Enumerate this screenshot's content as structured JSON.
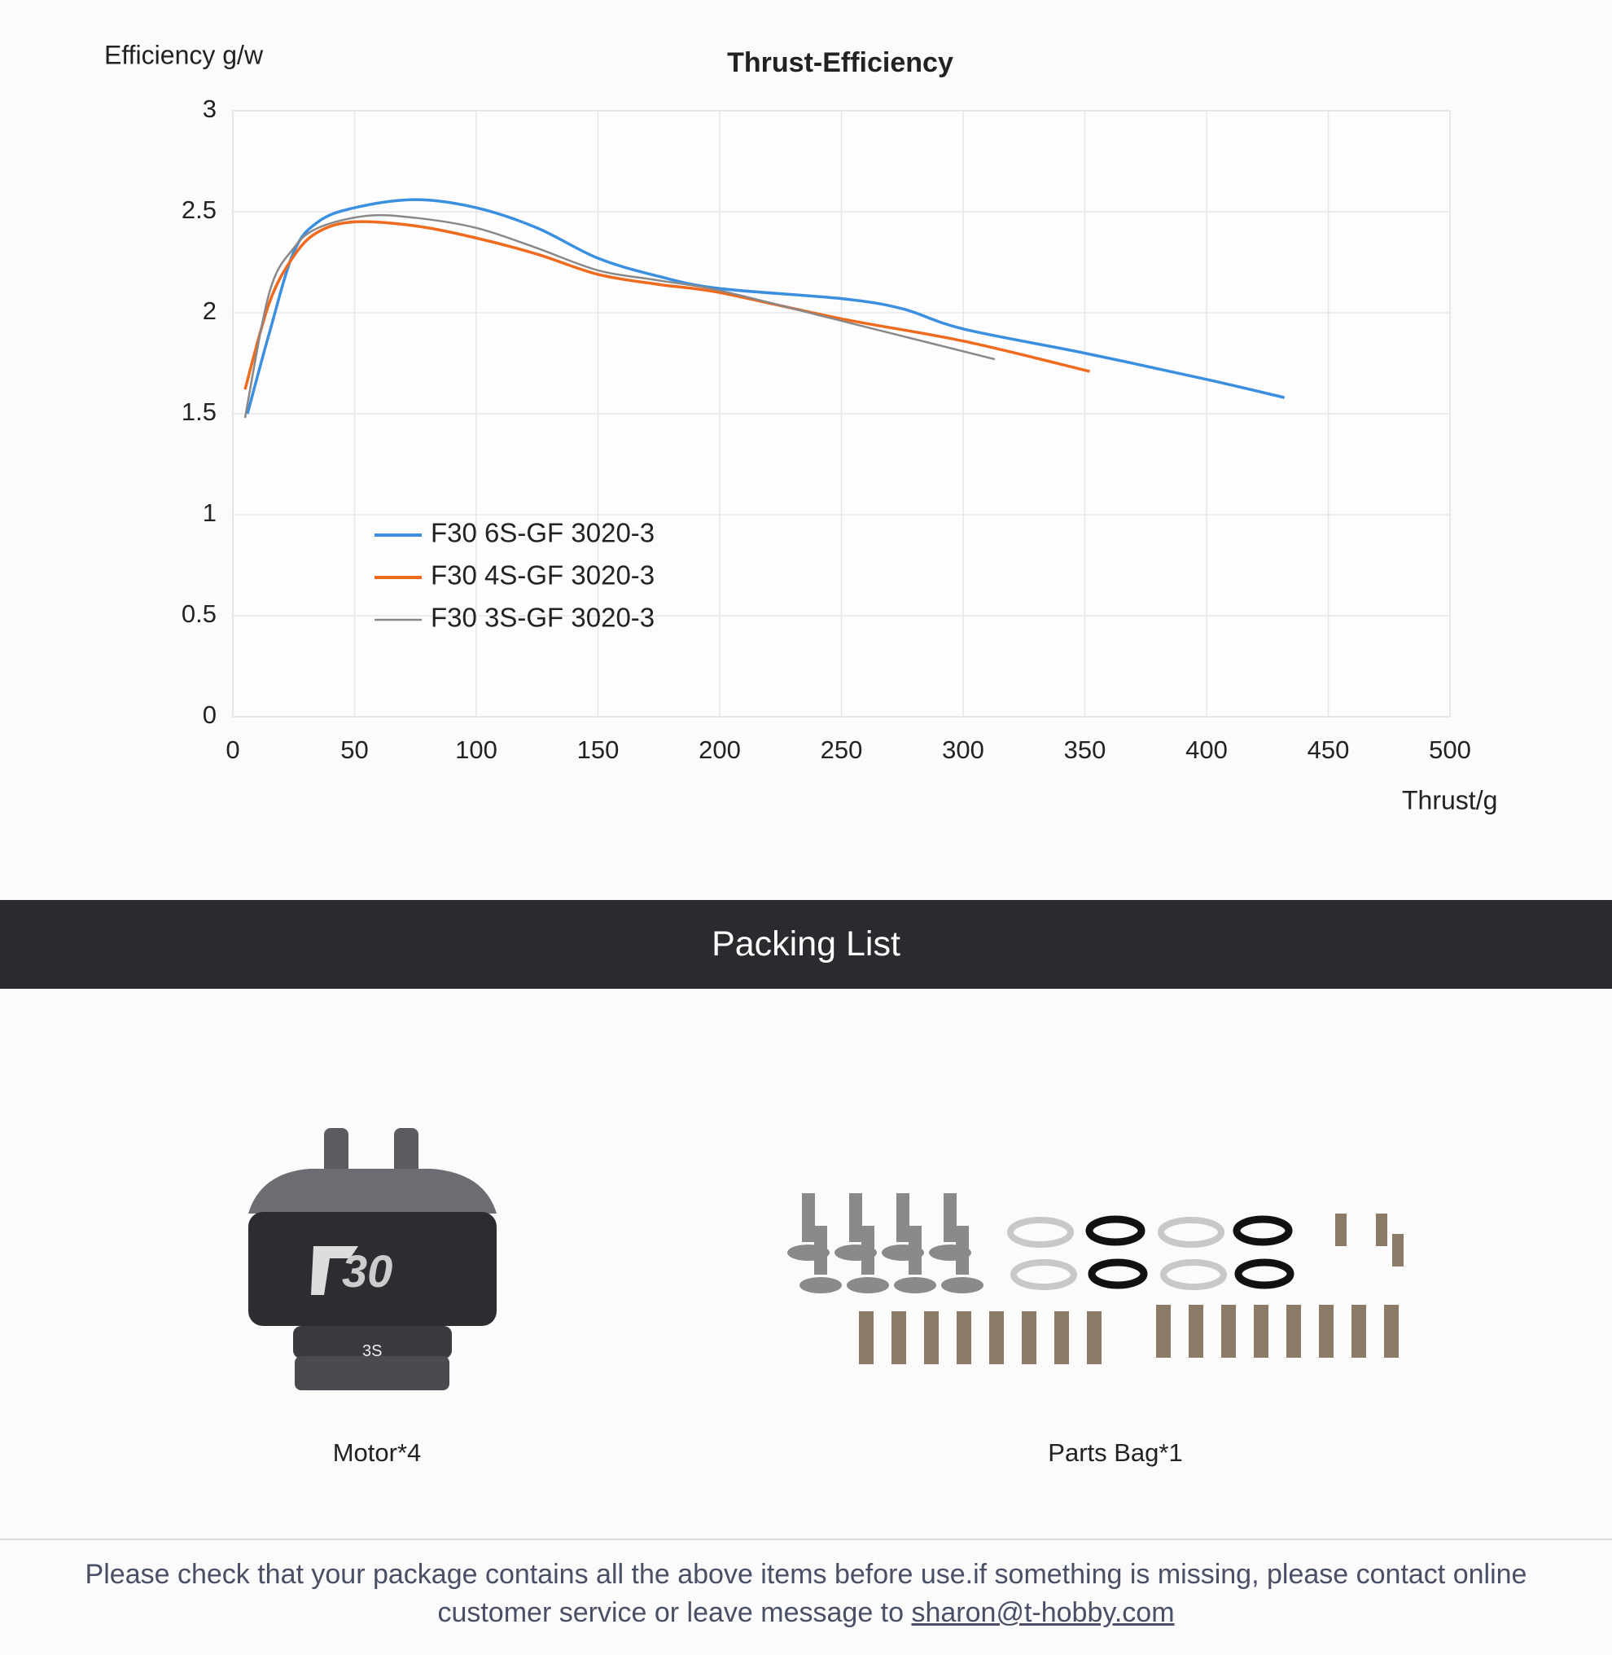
{
  "chart_data": {
    "type": "line",
    "title": "Thrust-Efficiency",
    "y_label": "Efficiency g/w",
    "x_label": "Thrust/g",
    "xlim": [
      0,
      500
    ],
    "xticks": [
      0,
      50,
      100,
      150,
      200,
      250,
      300,
      350,
      400,
      450,
      500
    ],
    "ylim": [
      0,
      3
    ],
    "yticks": [
      0,
      0.5,
      1,
      1.5,
      2,
      2.5,
      3
    ],
    "grid": true,
    "legend": "lower-left",
    "series": [
      {
        "name": "F30 6S-GF 3020-3",
        "color": "#3a8fe0",
        "x": [
          6,
          15,
          25,
          35,
          50,
          75,
          100,
          125,
          150,
          175,
          200,
          250,
          275,
          300,
          350,
          400,
          432
        ],
        "values": [
          1.5,
          1.9,
          2.3,
          2.45,
          2.52,
          2.56,
          2.52,
          2.42,
          2.27,
          2.18,
          2.12,
          2.07,
          2.02,
          1.92,
          1.8,
          1.67,
          1.58
        ]
      },
      {
        "name": "F30 4S-GF 3020-3",
        "color": "#f06a1e",
        "x": [
          5,
          15,
          25,
          35,
          50,
          75,
          100,
          125,
          150,
          175,
          200,
          250,
          300,
          352
        ],
        "values": [
          1.62,
          2.05,
          2.28,
          2.4,
          2.45,
          2.43,
          2.37,
          2.29,
          2.19,
          2.14,
          2.1,
          1.97,
          1.86,
          1.71
        ]
      },
      {
        "name": "F30 3S-GF 3020-3",
        "color": "#888888",
        "x": [
          5,
          15,
          25,
          35,
          55,
          75,
          100,
          125,
          150,
          175,
          200,
          250,
          313
        ],
        "values": [
          1.48,
          2.1,
          2.32,
          2.42,
          2.48,
          2.47,
          2.42,
          2.32,
          2.21,
          2.16,
          2.11,
          1.96,
          1.77
        ]
      }
    ]
  },
  "packing_list": {
    "title": "Packing List",
    "items": [
      "Motor*4",
      "Parts Bag*1"
    ]
  },
  "footer": {
    "text": "Please check that your package contains all the above items before use.if something is missing, please contact online customer service or leave message to ",
    "email": "sharon@t-hobby.com"
  }
}
